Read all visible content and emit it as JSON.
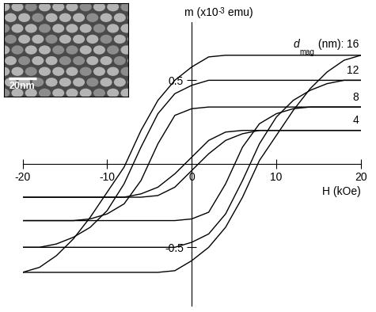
{
  "chart_data": {
    "type": "line",
    "y_label_parts": [
      "m (x10",
      "-3",
      " emu)"
    ],
    "x_label": "H (kOe)",
    "series_label_prefix_parts": [
      "d",
      "mag",
      " (nm): "
    ],
    "inset_scale_label": "20nm",
    "xlim": [
      -20,
      20
    ],
    "xticks": [
      -20,
      -10,
      0,
      10,
      20
    ],
    "ylim": [
      -0.85,
      0.85
    ],
    "yticks": [
      -0.5,
      0.5
    ],
    "x": [
      -20,
      -18,
      -16,
      -14,
      -12,
      -10,
      -8,
      -6,
      -4,
      -2,
      0,
      2,
      4,
      6,
      8,
      10,
      12,
      14,
      16,
      18,
      20
    ],
    "series": [
      {
        "name": "16",
        "color": "#000000",
        "ascending": [
          -0.65,
          -0.65,
          -0.65,
          -0.65,
          -0.65,
          -0.65,
          -0.65,
          -0.65,
          -0.65,
          -0.64,
          -0.58,
          -0.5,
          -0.38,
          -0.2,
          0.02,
          0.17,
          0.32,
          0.45,
          0.55,
          0.62,
          0.65
        ],
        "descending": [
          -0.65,
          -0.62,
          -0.55,
          -0.45,
          -0.32,
          -0.17,
          -0.02,
          0.2,
          0.38,
          0.5,
          0.58,
          0.64,
          0.65,
          0.65,
          0.65,
          0.65,
          0.65,
          0.65,
          0.65,
          0.65,
          0.65
        ]
      },
      {
        "name": "12",
        "color": "#000000",
        "ascending": [
          -0.5,
          -0.5,
          -0.5,
          -0.5,
          -0.5,
          -0.5,
          -0.5,
          -0.5,
          -0.5,
          -0.5,
          -0.47,
          -0.42,
          -0.3,
          -0.1,
          0.12,
          0.28,
          0.38,
          0.44,
          0.48,
          0.5,
          0.5
        ],
        "descending": [
          -0.5,
          -0.5,
          -0.48,
          -0.44,
          -0.38,
          -0.28,
          -0.12,
          0.1,
          0.3,
          0.42,
          0.47,
          0.5,
          0.5,
          0.5,
          0.5,
          0.5,
          0.5,
          0.5,
          0.5,
          0.5,
          0.5
        ]
      },
      {
        "name": "8",
        "color": "#000000",
        "ascending": [
          -0.34,
          -0.34,
          -0.34,
          -0.34,
          -0.34,
          -0.34,
          -0.34,
          -0.34,
          -0.34,
          -0.34,
          -0.33,
          -0.29,
          -0.12,
          0.1,
          0.24,
          0.3,
          0.33,
          0.34,
          0.34,
          0.34,
          0.34
        ],
        "descending": [
          -0.34,
          -0.34,
          -0.34,
          -0.34,
          -0.33,
          -0.3,
          -0.24,
          -0.1,
          0.12,
          0.29,
          0.33,
          0.34,
          0.34,
          0.34,
          0.34,
          0.34,
          0.34,
          0.34,
          0.34,
          0.34,
          0.34
        ]
      },
      {
        "name": "4",
        "color": "#000000",
        "ascending": [
          -0.2,
          -0.2,
          -0.2,
          -0.2,
          -0.2,
          -0.2,
          -0.2,
          -0.2,
          -0.19,
          -0.14,
          -0.04,
          0.06,
          0.14,
          0.18,
          0.2,
          0.2,
          0.2,
          0.2,
          0.2,
          0.2,
          0.2
        ],
        "descending": [
          -0.2,
          -0.2,
          -0.2,
          -0.2,
          -0.2,
          -0.2,
          -0.2,
          -0.18,
          -0.14,
          -0.06,
          0.04,
          0.14,
          0.19,
          0.2,
          0.2,
          0.2,
          0.2,
          0.2,
          0.2,
          0.2,
          0.2
        ]
      }
    ]
  }
}
